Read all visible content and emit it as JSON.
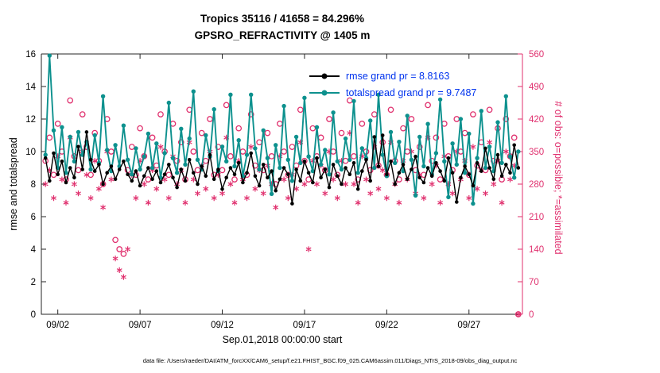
{
  "footer": "data file: /Users/raeder/DAI/ATM_forcXX/CAM6_setup/f.e21.FHIST_BGC.f09_025.CAM6assim.011/Diags_NTrS_2018-09/obs_diag_output.nc",
  "colors": {
    "rmse": "#000000",
    "totalspread": "#0d918e",
    "obs_counts": "#e0306e",
    "legend_text": "#0033ee",
    "axis": "#262626"
  },
  "legend": [
    {
      "label": "rmse grand pr = 8.8163",
      "series": "rmse",
      "color": "#000000"
    },
    {
      "label": "totalspread grand pr = 9.7487",
      "series": "totalspread",
      "color": "#0d918e"
    }
  ],
  "chart_data": {
    "type": "line",
    "title": "Tropics 35116 / 41658 = 84.296%",
    "subtitle": "GPSRO_REFRACTIVITY @ 1405 m",
    "x": {
      "label": "Sep.01,2018 00:00:00 start",
      "min": 0,
      "max": 29.25,
      "start_day": 0.25,
      "step_day": 0.25,
      "tick_days": [
        1,
        6,
        11,
        16,
        21,
        26
      ],
      "tick_labels": [
        "09/02",
        "09/07",
        "09/12",
        "09/17",
        "09/22",
        "09/27"
      ]
    },
    "left_axis": {
      "label": "rmse and totalspread",
      "min": 0,
      "max": 16,
      "ticks": [
        0,
        2,
        4,
        6,
        8,
        10,
        12,
        14,
        16
      ],
      "color": "#000000"
    },
    "right_axis": {
      "label": "# of obs: o=possible; *=assimilated",
      "min": 0,
      "max": 560,
      "ticks": [
        0,
        70,
        140,
        210,
        280,
        350,
        420,
        490,
        560
      ],
      "color": "#e0306e"
    },
    "series": [
      {
        "name": "possible",
        "axis": "right",
        "marker": "circle",
        "color": "#e0306e",
        "values": [
          330,
          380,
          300,
          410,
          350,
          290,
          460,
          340,
          310,
          430,
          360,
          300,
          390,
          330,
          280,
          420,
          350,
          160,
          140,
          130,
          310,
          360,
          300,
          400,
          340,
          290,
          380,
          320,
          430,
          350,
          300,
          410,
          330,
          370,
          290,
          440,
          350,
          310,
          390,
          330,
          420,
          300,
          360,
          310,
          450,
          340,
          290,
          400,
          350,
          300,
          430,
          320,
          370,
          310,
          390,
          340,
          280,
          410,
          350,
          300,
          360,
          320,
          440,
          330,
          290,
          400,
          340,
          380,
          310,
          420,
          350,
          300,
          390,
          330,
          460,
          340,
          290,
          410,
          350,
          310,
          430,
          320,
          370,
          300,
          440,
          330,
          290,
          400,
          350,
          420,
          310,
          360,
          300,
          450,
          330,
          380,
          290,
          410,
          340,
          310,
          420,
          350,
          390,
          300,
          430,
          320,
          370,
          310,
          440,
          330,
          400,
          290,
          420,
          340,
          380,
          0
        ]
      },
      {
        "name": "assimilated",
        "axis": "right",
        "marker": "asterisk",
        "color": "#e0306e",
        "values": [
          280,
          310,
          250,
          340,
          290,
          240,
          380,
          280,
          260,
          350,
          300,
          250,
          330,
          270,
          230,
          350,
          290,
          120,
          95,
          80,
          140,
          300,
          250,
          330,
          280,
          240,
          310,
          270,
          360,
          290,
          250,
          340,
          280,
          310,
          240,
          370,
          290,
          260,
          320,
          270,
          350,
          250,
          300,
          260,
          380,
          280,
          240,
          330,
          290,
          250,
          360,
          270,
          310,
          260,
          320,
          280,
          230,
          340,
          290,
          250,
          300,
          270,
          370,
          280,
          140,
          330,
          280,
          320,
          260,
          350,
          290,
          250,
          330,
          280,
          390,
          280,
          240,
          340,
          290,
          260,
          360,
          270,
          310,
          250,
          370,
          280,
          240,
          330,
          290,
          350,
          260,
          300,
          250,
          380,
          280,
          320,
          240,
          340,
          280,
          260,
          350,
          290,
          330,
          250,
          360,
          270,
          310,
          260,
          370,
          280,
          330,
          240,
          350,
          290,
          320,
          0
        ]
      },
      {
        "name": "totalspread",
        "axis": "left",
        "marker": "dot",
        "color": "#0d918e",
        "values": [
          9.8,
          15.9,
          11.3,
          9.0,
          11.5,
          8.7,
          10.9,
          9.4,
          11.2,
          9.8,
          10.6,
          8.9,
          11.0,
          9.3,
          13.4,
          10.1,
          8.8,
          10.4,
          9.1,
          11.6,
          9.5,
          8.6,
          10.2,
          8.9,
          9.7,
          11.1,
          9.0,
          10.5,
          8.4,
          9.9,
          13.0,
          9.6,
          8.7,
          11.4,
          9.2,
          10.8,
          13.7,
          9.5,
          8.9,
          11.0,
          9.7,
          12.6,
          8.8,
          10.3,
          9.4,
          13.5,
          9.1,
          10.7,
          8.5,
          9.8,
          13.5,
          10.2,
          8.9,
          11.3,
          9.6,
          7.4,
          10.4,
          9.0,
          12.8,
          9.5,
          8.2,
          10.9,
          9.3,
          13.3,
          9.7,
          8.8,
          11.5,
          9.2,
          10.1,
          8.6,
          12.4,
          9.4,
          8.9,
          10.8,
          9.5,
          13.1,
          8.7,
          10.2,
          9.6,
          11.9,
          9.0,
          13.5,
          9.8,
          8.5,
          11.2,
          9.3,
          10.6,
          8.8,
          12.2,
          9.5,
          7.3,
          10.9,
          9.1,
          11.7,
          8.6,
          9.9,
          13.2,
          9.4,
          7.2,
          10.5,
          9.2,
          12.0,
          8.7,
          11.1,
          6.8,
          9.6,
          12.5,
          9.0,
          10.3,
          8.8,
          11.8,
          9.3,
          13.4,
          9.7,
          8.4,
          10.0
        ]
      },
      {
        "name": "rmse",
        "axis": "left",
        "marker": "dot",
        "color": "#000000",
        "values": [
          9.6,
          8.2,
          9.9,
          8.6,
          9.4,
          8.1,
          9.0,
          8.4,
          10.3,
          8.9,
          11.2,
          9.5,
          8.8,
          9.2,
          8.0,
          8.7,
          9.1,
          8.3,
          8.9,
          9.4,
          8.6,
          8.2,
          8.8,
          7.9,
          8.5,
          9.0,
          8.3,
          8.8,
          8.1,
          8.6,
          9.2,
          8.4,
          7.8,
          8.9,
          8.2,
          9.5,
          8.7,
          8.0,
          9.1,
          8.5,
          9.8,
          8.3,
          8.9,
          7.7,
          8.4,
          9.0,
          8.6,
          9.3,
          8.1,
          8.7,
          9.9,
          8.5,
          7.9,
          9.2,
          8.4,
          8.8,
          7.6,
          8.3,
          9.0,
          8.6,
          6.8,
          8.9,
          8.2,
          9.4,
          8.7,
          8.1,
          9.6,
          8.4,
          8.9,
          7.8,
          9.2,
          8.5,
          8.0,
          9.0,
          8.6,
          9.3,
          7.7,
          8.8,
          9.5,
          8.2,
          10.9,
          9.1,
          11.0,
          8.6,
          9.4,
          8.0,
          8.7,
          9.2,
          8.3,
          8.9,
          9.7,
          8.4,
          8.1,
          9.0,
          8.5,
          9.3,
          8.8,
          8.2,
          9.6,
          8.7,
          6.9,
          8.4,
          9.1,
          8.6,
          7.9,
          9.3,
          8.8,
          10.2,
          9.0,
          8.3,
          9.8,
          8.5,
          9.2,
          8.7,
          10.4,
          9.0
        ]
      }
    ]
  }
}
